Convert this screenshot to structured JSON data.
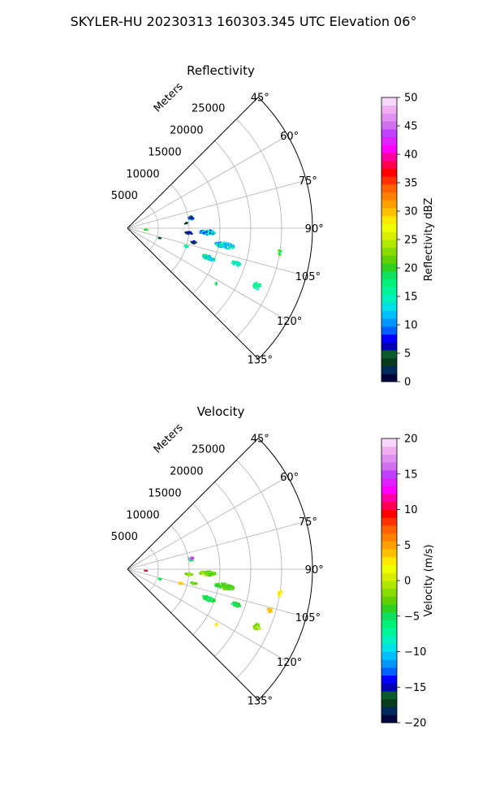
{
  "figure": {
    "suptitle": "SKYLER-HU  20230313  160303.345 UTC Elevation 06°"
  },
  "chart_data": [
    {
      "type": "scatter",
      "projection": "polar-sector",
      "title": "Reflectivity",
      "radial_label": "Meters",
      "theta_range_deg": [
        45,
        135
      ],
      "theta_ticks": [
        45,
        60,
        75,
        90,
        105,
        120,
        135
      ],
      "theta_tick_labels": [
        "45°",
        "60°",
        "75°",
        "90°",
        "105°",
        "120°",
        "135°"
      ],
      "r_range": [
        0,
        30000
      ],
      "r_ticks": [
        5000,
        10000,
        15000,
        20000,
        25000
      ],
      "r_tick_labels": [
        "5000",
        "10000",
        "15000",
        "20000",
        "25000"
      ],
      "grid": true,
      "colorbar": {
        "label": "Reflectivity dBZ",
        "range": [
          0,
          50
        ],
        "ticks": [
          0,
          5,
          10,
          15,
          20,
          25,
          30,
          35,
          40,
          45,
          50
        ],
        "tick_labels": [
          "0",
          "5",
          "10",
          "15",
          "20",
          "25",
          "30",
          "35",
          "40",
          "45",
          "50"
        ],
        "colors": [
          "#00063a",
          "#002a5a",
          "#0a3a1e",
          "#0a5a2e",
          "#0000b4",
          "#0000ff",
          "#0060ff",
          "#0096ff",
          "#00bfff",
          "#00e0e8",
          "#00f0c0",
          "#00f59a",
          "#00f07a",
          "#10e060",
          "#30d020",
          "#60d000",
          "#88dd00",
          "#b0e800",
          "#d8f000",
          "#f0ff00",
          "#ffe800",
          "#ffc000",
          "#ffa000",
          "#ff8000",
          "#ff6000",
          "#ff3000",
          "#ff0000",
          "#ff0050",
          "#ff00a0",
          "#ff00ff",
          "#e020ff",
          "#c040ff",
          "#d070f0",
          "#e090f0",
          "#f0b0f0",
          "#f8d8f8"
        ]
      },
      "clusters": [
        {
          "theta_deg": 93.0,
          "r_m": 13000,
          "dtheta_deg": 1.8,
          "dr_m": 2600,
          "values": [
            8,
            12,
            14,
            16,
            11
          ]
        },
        {
          "theta_deg": 94.5,
          "r_m": 10000,
          "dtheta_deg": 1.2,
          "dr_m": 1200,
          "values": [
            2,
            4,
            6,
            8
          ]
        },
        {
          "theta_deg": 100.0,
          "r_m": 16000,
          "dtheta_deg": 1.8,
          "dr_m": 3200,
          "values": [
            10,
            13,
            15,
            16,
            12
          ]
        },
        {
          "theta_deg": 102.0,
          "r_m": 11000,
          "dtheta_deg": 1.2,
          "dr_m": 1000,
          "values": [
            2,
            5,
            8
          ]
        },
        {
          "theta_deg": 110.0,
          "r_m": 14000,
          "dtheta_deg": 1.6,
          "dr_m": 2200,
          "values": [
            12,
            15,
            17,
            19
          ]
        },
        {
          "theta_deg": 108.0,
          "r_m": 18500,
          "dtheta_deg": 1.3,
          "dr_m": 1500,
          "values": [
            12,
            14,
            16
          ]
        },
        {
          "theta_deg": 99.0,
          "r_m": 25000,
          "dtheta_deg": 1.4,
          "dr_m": 600,
          "values": [
            16,
            19,
            21
          ]
        },
        {
          "theta_deg": 114.0,
          "r_m": 23000,
          "dtheta_deg": 1.5,
          "dr_m": 1200,
          "values": [
            14,
            16,
            18
          ]
        },
        {
          "theta_deg": 81.0,
          "r_m": 10500,
          "dtheta_deg": 1.8,
          "dr_m": 900,
          "values": [
            3,
            7,
            10
          ]
        },
        {
          "theta_deg": 85.0,
          "r_m": 9500,
          "dtheta_deg": 1.0,
          "dr_m": 500,
          "values": [
            2,
            4
          ]
        },
        {
          "theta_deg": 107.0,
          "r_m": 10000,
          "dtheta_deg": 1.2,
          "dr_m": 600,
          "values": [
            14,
            18
          ]
        },
        {
          "theta_deg": 122.0,
          "r_m": 17000,
          "dtheta_deg": 0.8,
          "dr_m": 400,
          "values": [
            19,
            22
          ]
        },
        {
          "theta_deg": 95.0,
          "r_m": 3000,
          "dtheta_deg": 1.2,
          "dr_m": 500,
          "values": [
            18,
            20
          ]
        },
        {
          "theta_deg": 107.0,
          "r_m": 5500,
          "dtheta_deg": 1.0,
          "dr_m": 500,
          "values": [
            3,
            5
          ]
        }
      ]
    },
    {
      "type": "scatter",
      "projection": "polar-sector",
      "title": "Velocity",
      "radial_label": "Meters",
      "theta_range_deg": [
        45,
        135
      ],
      "theta_ticks": [
        45,
        60,
        75,
        90,
        105,
        120,
        135
      ],
      "theta_tick_labels": [
        "45°",
        "60°",
        "75°",
        "90°",
        "105°",
        "120°",
        "135°"
      ],
      "r_range": [
        0,
        30000
      ],
      "r_ticks": [
        5000,
        10000,
        15000,
        20000,
        25000
      ],
      "r_tick_labels": [
        "5000",
        "10000",
        "15000",
        "20000",
        "25000"
      ],
      "grid": true,
      "colorbar": {
        "label": "Velocity (m/s)",
        "range": [
          -20,
          20
        ],
        "ticks": [
          -20,
          -15,
          -10,
          -5,
          0,
          5,
          10,
          15,
          20
        ],
        "tick_labels": [
          "−20",
          "−15",
          "−10",
          "−5",
          "0",
          "5",
          "10",
          "15",
          "20"
        ],
        "colors": [
          "#00063a",
          "#002a5a",
          "#0a3a1e",
          "#0a5a2e",
          "#0000b4",
          "#0000ff",
          "#0060ff",
          "#0096ff",
          "#00bfff",
          "#00e0e8",
          "#00f0c0",
          "#00f59a",
          "#00f07a",
          "#10e060",
          "#30d020",
          "#60d000",
          "#88dd00",
          "#b0e800",
          "#d8f000",
          "#f0ff00",
          "#ffe800",
          "#ffc000",
          "#ffa000",
          "#ff8000",
          "#ff6000",
          "#ff3000",
          "#ff0000",
          "#ff0050",
          "#ff00a0",
          "#ff00ff",
          "#e020ff",
          "#c040ff",
          "#d070f0",
          "#e090f0",
          "#f0b0f0",
          "#f8d8f8"
        ]
      },
      "clusters": [
        {
          "theta_deg": 93.0,
          "r_m": 13000,
          "dtheta_deg": 1.8,
          "dr_m": 2600,
          "values": [
            -3,
            -2,
            -4,
            -1
          ]
        },
        {
          "theta_deg": 94.5,
          "r_m": 10000,
          "dtheta_deg": 1.2,
          "dr_m": 1200,
          "values": [
            -2,
            -1,
            -3
          ]
        },
        {
          "theta_deg": 100.0,
          "r_m": 16000,
          "dtheta_deg": 1.8,
          "dr_m": 3200,
          "values": [
            -3,
            -5,
            -4,
            -2
          ]
        },
        {
          "theta_deg": 102.0,
          "r_m": 11000,
          "dtheta_deg": 1.2,
          "dr_m": 1000,
          "values": [
            -2,
            -4,
            -3
          ]
        },
        {
          "theta_deg": 110.0,
          "r_m": 14000,
          "dtheta_deg": 1.6,
          "dr_m": 2200,
          "values": [
            -5,
            -6,
            -4
          ]
        },
        {
          "theta_deg": 108.0,
          "r_m": 18500,
          "dtheta_deg": 1.3,
          "dr_m": 1500,
          "values": [
            -4,
            -6,
            -5
          ]
        },
        {
          "theta_deg": 99.0,
          "r_m": 25000,
          "dtheta_deg": 1.4,
          "dr_m": 600,
          "values": [
            2,
            3,
            4
          ]
        },
        {
          "theta_deg": 114.0,
          "r_m": 23000,
          "dtheta_deg": 1.5,
          "dr_m": 1200,
          "values": [
            -2,
            -1,
            -3
          ]
        },
        {
          "theta_deg": 81.0,
          "r_m": 10500,
          "dtheta_deg": 1.8,
          "dr_m": 900,
          "values": [
            14,
            16,
            -6
          ]
        },
        {
          "theta_deg": 105.0,
          "r_m": 9000,
          "dtheta_deg": 1.2,
          "dr_m": 800,
          "values": [
            3,
            4
          ]
        },
        {
          "theta_deg": 106.0,
          "r_m": 24000,
          "dtheta_deg": 1.0,
          "dr_m": 800,
          "values": [
            3,
            5
          ]
        },
        {
          "theta_deg": 122.0,
          "r_m": 17000,
          "dtheta_deg": 0.8,
          "dr_m": 400,
          "values": [
            3
          ]
        },
        {
          "theta_deg": 95.0,
          "r_m": 3000,
          "dtheta_deg": 1.2,
          "dr_m": 500,
          "values": [
            10,
            -4
          ]
        },
        {
          "theta_deg": 107.0,
          "r_m": 5500,
          "dtheta_deg": 1.0,
          "dr_m": 500,
          "values": [
            -6,
            -4
          ]
        }
      ]
    }
  ]
}
